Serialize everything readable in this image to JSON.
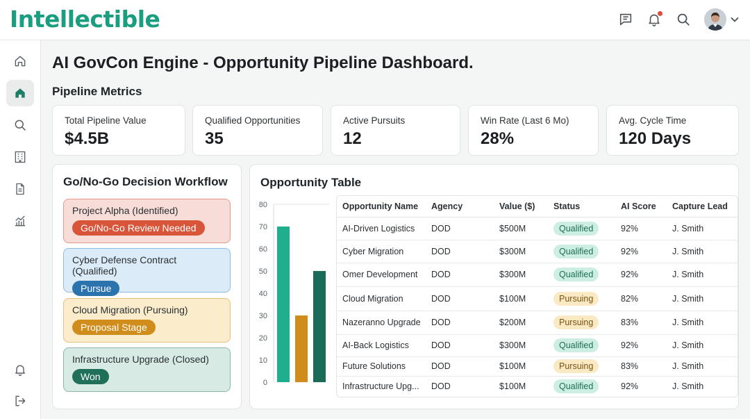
{
  "app": {
    "logo": "Intellectible"
  },
  "header": {
    "icons": [
      "message-icon",
      "bell-icon",
      "search-icon",
      "avatar",
      "chevron-down-icon"
    ]
  },
  "sidebar": {
    "items": [
      "home-outline-icon",
      "home-filled-icon",
      "search-icon",
      "building-icon",
      "document-icon",
      "analytics-icon",
      "bell-icon",
      "logout-icon"
    ]
  },
  "page": {
    "title": "AI GovCon Engine - Opportunity Pipeline Dashboard.",
    "metrics_title": "Pipeline Metrics"
  },
  "metrics": [
    {
      "label": "Total Pipeline Value",
      "value": "$4.5B"
    },
    {
      "label": "Qualified Opportunities",
      "value": "35"
    },
    {
      "label": "Active Pursuits",
      "value": "12"
    },
    {
      "label": "Win Rate (Last 6 Mo)",
      "value": "28%"
    },
    {
      "label": "Avg. Cycle Time",
      "value": "120 Days"
    }
  ],
  "workflow": {
    "title": "Go/No-Go Decision Workflow",
    "cards": [
      {
        "title": "Project Alpha (Identified)",
        "badge": "Go/No-Go Review Needed",
        "color": "#d9553a",
        "bg": "#f8dcd7",
        "border": "#e39a8c"
      },
      {
        "title": "Cyber Defense Contract (Qualified)",
        "badge": "Pursue",
        "color": "#2b73ad",
        "bg": "#dbebf7",
        "border": "#8dbbe0"
      },
      {
        "title": "Cloud Migration (Pursuing)",
        "badge": "Proposal Stage",
        "color": "#d18d1b",
        "bg": "#fbeccb",
        "border": "#e6c17b"
      },
      {
        "title": "Infrastructure Upgrade (Closed)",
        "badge": "Won",
        "color": "#1f6f59",
        "bg": "#d7ebe4",
        "border": "#8ab8a8"
      }
    ]
  },
  "table": {
    "title": "Opportunity Table",
    "columns": [
      "Opportunity Name",
      "Agency",
      "Value ($)",
      "Status",
      "AI Score",
      "Capture Lead"
    ],
    "rows": [
      [
        "AI-Driven Logistics",
        "DOD",
        "$500M",
        "Qualified",
        "92%",
        "J. Smith"
      ],
      [
        "Cyber Migration",
        "DOD",
        "$300M",
        "Qualified",
        "92%",
        "J. Smith"
      ],
      [
        "Omer Development",
        "DOD",
        "$300M",
        "Qualified",
        "92%",
        "J. Smith"
      ],
      [
        "Cloud Migration",
        "DOD",
        "$100M",
        "Pursuing",
        "82%",
        "J. Smith"
      ],
      [
        "Nazeranno Upgrade",
        "DOD",
        "$200M",
        "Pursuing",
        "83%",
        "J. Smith"
      ],
      [
        "AI-Back Logistics",
        "DOD",
        "$300M",
        "Qualified",
        "92%",
        "J. Smith"
      ],
      [
        "Future Solutions",
        "DOD",
        "$100M",
        "Pursuing",
        "83%",
        "J. Smith"
      ],
      [
        "Infrastructure Upg...",
        "DOD",
        "$100M",
        "Qualified",
        "92%",
        "J. Smith"
      ]
    ]
  },
  "chart_data": {
    "type": "bar",
    "ylim": [
      0,
      80
    ],
    "yticks": [
      0,
      10,
      20,
      30,
      40,
      50,
      60,
      70,
      80
    ],
    "values": [
      70,
      30,
      50
    ],
    "colors": [
      "#1fae8e",
      "#d18d1b",
      "#1a6b58"
    ],
    "grid": false
  }
}
